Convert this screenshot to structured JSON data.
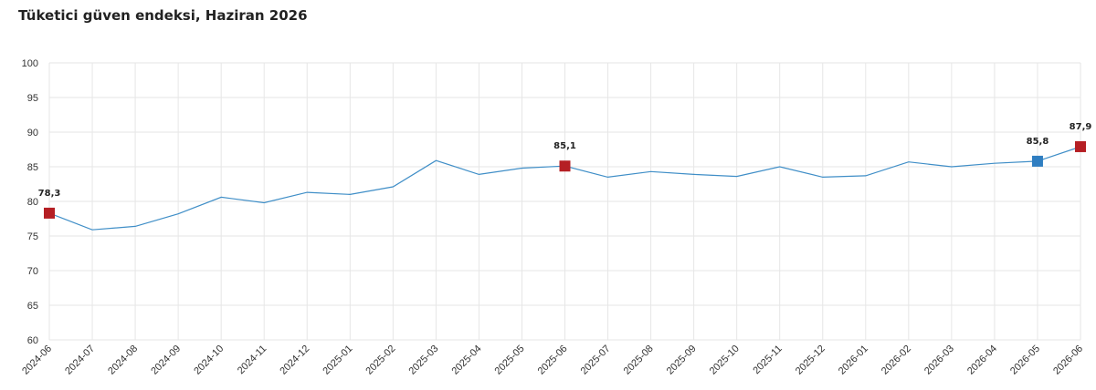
{
  "chart_data": {
    "type": "line",
    "title": "Tüketici güven endeksi, Haziran 2026",
    "xlabel": "",
    "ylabel": "",
    "ylim": [
      60,
      100
    ],
    "yticks": [
      "60",
      "65",
      "70",
      "75",
      "80",
      "85",
      "90",
      "95",
      "100"
    ],
    "grid": true,
    "categories": [
      "2024-06",
      "2024-07",
      "2024-08",
      "2024-09",
      "2024-10",
      "2024-11",
      "2024-12",
      "2025-01",
      "2025-02",
      "2025-03",
      "2025-04",
      "2025-05",
      "2025-06",
      "2025-07",
      "2025-08",
      "2025-09",
      "2025-10",
      "2025-11",
      "2025-12",
      "2026-01",
      "2026-02",
      "2026-03",
      "2026-04",
      "2026-05",
      "2026-06"
    ],
    "values": [
      78.3,
      75.9,
      76.4,
      78.2,
      80.6,
      79.8,
      81.3,
      81.0,
      82.1,
      85.9,
      83.9,
      84.8,
      85.1,
      83.5,
      84.3,
      83.9,
      83.6,
      85.0,
      83.5,
      83.7,
      85.7,
      85.0,
      85.5,
      85.8,
      87.9
    ],
    "series_color": "#3f8ec7",
    "highlights": [
      {
        "index": 0,
        "label": "78,3",
        "color": "#b51f24"
      },
      {
        "index": 12,
        "label": "85,1",
        "color": "#b51f24"
      },
      {
        "index": 23,
        "label": "85,8",
        "color": "#2f7ec1"
      },
      {
        "index": 24,
        "label": "87,9",
        "color": "#b51f24"
      }
    ]
  }
}
